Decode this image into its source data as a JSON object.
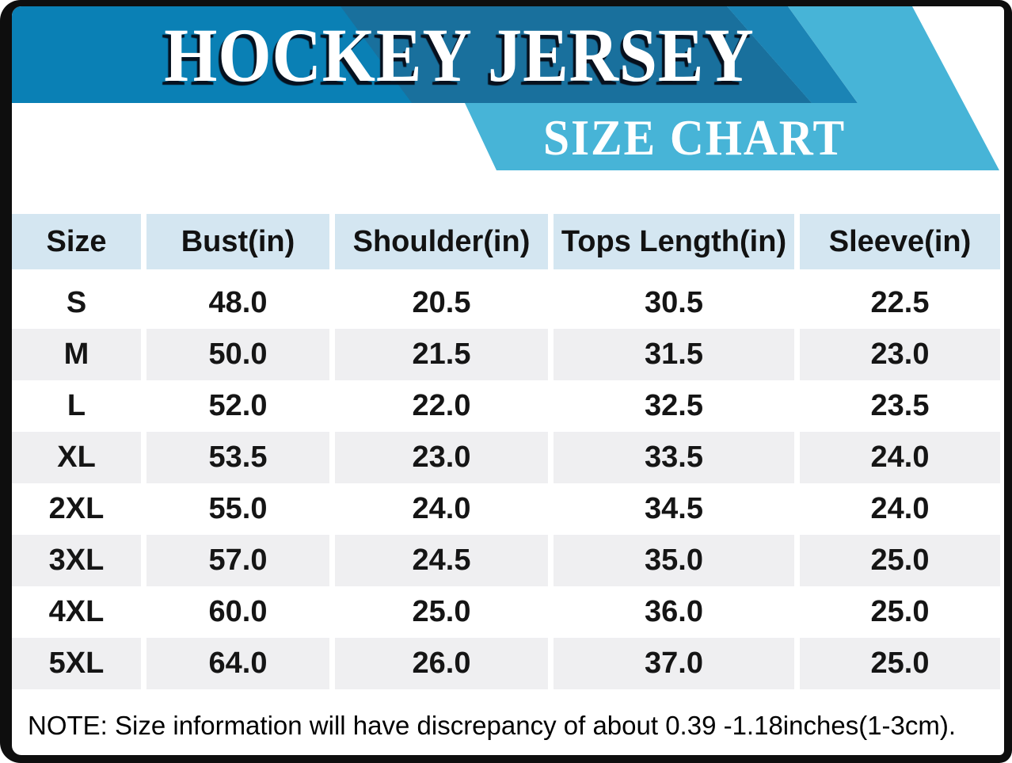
{
  "banner": {
    "title": "HOCKEY JERSEY",
    "subtitle": "SIZE CHART"
  },
  "table": {
    "columns": [
      "Size",
      "Bust(in)",
      "Shoulder(in)",
      "Tops Length(in)",
      "Sleeve(in)"
    ],
    "rows": [
      [
        "S",
        "48.0",
        "20.5",
        "30.5",
        "22.5"
      ],
      [
        "M",
        "50.0",
        "21.5",
        "31.5",
        "23.0"
      ],
      [
        "L",
        "52.0",
        "22.0",
        "32.5",
        "23.5"
      ],
      [
        "XL",
        "53.5",
        "23.0",
        "33.5",
        "24.0"
      ],
      [
        "2XL",
        "55.0",
        "24.0",
        "34.5",
        "24.0"
      ],
      [
        "3XL",
        "57.0",
        "24.5",
        "35.0",
        "25.0"
      ],
      [
        "4XL",
        "60.0",
        "25.0",
        "36.0",
        "25.0"
      ],
      [
        "5XL",
        "64.0",
        "26.0",
        "37.0",
        "25.0"
      ]
    ]
  },
  "note": "NOTE: Size information will have discrepancy of about 0.39 -1.18inches(1-3cm).",
  "colors": {
    "banner_dark": "#0a80b5",
    "banner_darker": "#19709d",
    "stripe_mid": "#1b84b5",
    "swoosh_light": "#47b4d7",
    "table_header_bg": "#d4e6f1",
    "row_alt_bg": "#efeff1",
    "frame_black": "#0e0e0e",
    "text_black": "#151515",
    "banner_text": "#ffffff"
  }
}
